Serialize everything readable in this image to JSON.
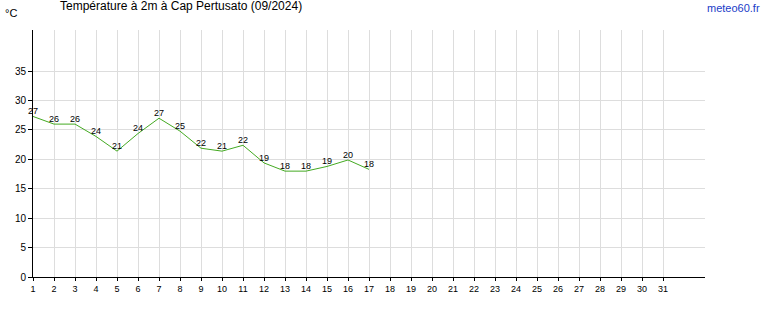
{
  "chart_data": {
    "type": "line",
    "title": "Température à 2m à Cap Pertusato (09/2024)",
    "y_label": "°C",
    "annotations": [
      "meteo60.fr"
    ],
    "x": [
      1,
      2,
      3,
      4,
      5,
      6,
      7,
      8,
      9,
      10,
      11,
      12,
      13,
      14,
      15,
      16,
      17,
      18,
      19,
      20,
      21,
      22,
      23,
      24,
      25,
      26,
      27,
      28,
      29,
      30,
      31
    ],
    "values": [
      27.3,
      26.0,
      26.0,
      23.9,
      21.4,
      24.4,
      27.0,
      24.8,
      21.9,
      21.4,
      22.4,
      19.4,
      18.0,
      18.0,
      18.8,
      19.9,
      18.3,
      null,
      null,
      null,
      null,
      null,
      null,
      null,
      null,
      null,
      null,
      null,
      null,
      null,
      null
    ],
    "value_labels": [
      "27",
      "26",
      "26",
      "24",
      "21",
      "24",
      "27",
      "25",
      "22",
      "21",
      "22",
      "19",
      "18",
      "18",
      "19",
      "20",
      "18",
      null,
      null,
      null,
      null,
      null,
      null,
      null,
      null,
      null,
      null,
      null,
      null,
      null,
      null
    ],
    "data_labels": true,
    "color": "#44aa22",
    "xlim": [
      1,
      33
    ],
    "xticks": [
      1,
      2,
      3,
      4,
      5,
      6,
      7,
      8,
      9,
      10,
      11,
      12,
      13,
      14,
      15,
      16,
      17,
      18,
      19,
      20,
      21,
      22,
      23,
      24,
      25,
      26,
      27,
      28,
      29,
      30,
      31
    ],
    "ylim": [
      0,
      42
    ],
    "yticks": [
      0,
      5,
      10,
      15,
      20,
      25,
      30,
      35
    ],
    "grid": true
  }
}
